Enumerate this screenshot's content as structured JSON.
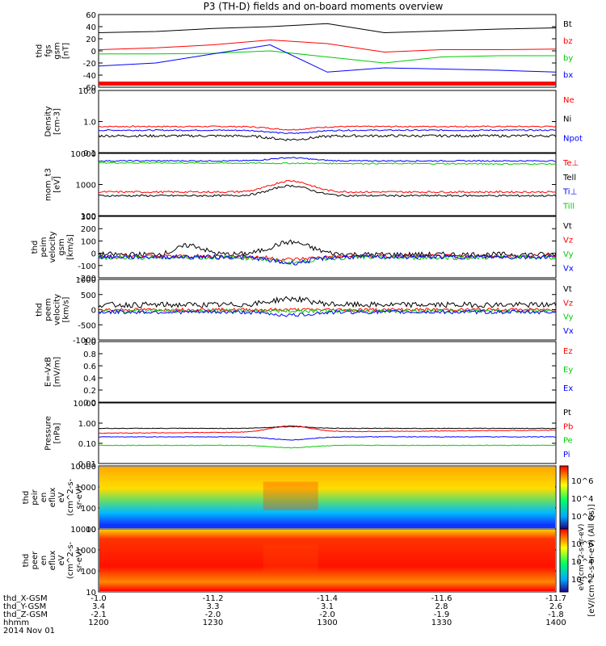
{
  "title": "P3 (TH-D) fields and on-board moments overview",
  "colors": {
    "black": "#000000",
    "red": "#ff0000",
    "green": "#00cc00",
    "blue": "#0000ff"
  },
  "panels": [
    {
      "ylabel": [
        "thd",
        "fgs",
        "gsm",
        "[nT]"
      ],
      "ticks": [
        "60",
        "40",
        "20",
        "0",
        "-20",
        "-40",
        "-60"
      ],
      "legend": [
        {
          "text": "Bt",
          "color": "black"
        },
        {
          "text": "bz",
          "color": "red"
        },
        {
          "text": "by",
          "color": "green"
        },
        {
          "text": "bx",
          "color": "blue"
        }
      ]
    },
    {
      "ylabel": [
        "Density",
        "[cm-3]"
      ],
      "ticks": [
        "10.0",
        "1.0",
        "0.1"
      ],
      "legend": [
        {
          "text": "Ne",
          "color": "red"
        },
        {
          "text": "Ni",
          "color": "black"
        },
        {
          "text": "Npot",
          "color": "blue"
        }
      ]
    },
    {
      "ylabel": [
        "mom_t3",
        "[eV]"
      ],
      "ticks": [
        "10000",
        "1000",
        "100"
      ],
      "legend": [
        {
          "text": "Te⊥",
          "color": "red"
        },
        {
          "text": "Tell",
          "color": "black"
        },
        {
          "text": "Ti⊥",
          "color": "blue"
        },
        {
          "text": "Till",
          "color": "green"
        }
      ]
    },
    {
      "ylabel": [
        "thd",
        "peim",
        "velocity",
        "gsm",
        "[km/s]"
      ],
      "ticks": [
        "300",
        "200",
        "100",
        "0",
        "-100",
        "-200"
      ],
      "legend": [
        {
          "text": "Vt",
          "color": "black"
        },
        {
          "text": "Vz",
          "color": "red"
        },
        {
          "text": "Vy",
          "color": "green"
        },
        {
          "text": "Vx",
          "color": "blue"
        }
      ]
    },
    {
      "ylabel": [
        "thd",
        "peem",
        "velocity",
        "[km/s]"
      ],
      "ticks": [
        "1000",
        "500",
        "0",
        "-500",
        "-1000"
      ],
      "legend": [
        {
          "text": "Vt",
          "color": "black"
        },
        {
          "text": "Vz",
          "color": "red"
        },
        {
          "text": "Vy",
          "color": "green"
        },
        {
          "text": "Vx",
          "color": "blue"
        }
      ]
    },
    {
      "ylabel": [
        "E=-VxB",
        "[mV/m]"
      ],
      "ticks": [
        "1.0",
        "0.8",
        "0.6",
        "0.4",
        "0.2",
        "0.0"
      ],
      "legend": [
        {
          "text": "Ez",
          "color": "red"
        },
        {
          "text": "Ey",
          "color": "green"
        },
        {
          "text": "Ex",
          "color": "blue"
        }
      ]
    },
    {
      "ylabel": [
        "Pressure",
        "[nPa]"
      ],
      "ticks": [
        "10.00",
        "1.00",
        "0.10",
        "0.01"
      ],
      "legend": [
        {
          "text": "Pt",
          "color": "black"
        },
        {
          "text": "Pb",
          "color": "red"
        },
        {
          "text": "Pe",
          "color": "green"
        },
        {
          "text": "Pi",
          "color": "blue"
        }
      ]
    },
    {
      "ylabel": [
        "thd",
        "peir",
        "en",
        "eflux",
        "eV",
        "(cm^2-s-",
        "sr-eV)"
      ],
      "ticks": [
        "10000",
        "1000",
        "100",
        "10"
      ]
    },
    {
      "ylabel": [
        "thd",
        "peer",
        "en",
        "eflux",
        "eV",
        "(cm^2-s-",
        "sr-eV)"
      ],
      "ticks": [
        "10000",
        "1000",
        "100",
        "10"
      ]
    }
  ],
  "colorbar": {
    "ticks1": [
      "10^6",
      "10^4",
      "10^2"
    ],
    "ticks2": [
      "10^6",
      "10^4",
      "10^2"
    ],
    "label": "[eV/(cm^2-s-sr-eV) (All Qs)]",
    "label2": "eV/(cm^2-s-sr-eV)"
  },
  "xaxis": {
    "rows": [
      {
        "label": "thd_X-GSM",
        "values": [
          "-1.0",
          "-11.2",
          "-11.4",
          "-11.6",
          "-11.7"
        ]
      },
      {
        "label": "thd_Y-GSM",
        "values": [
          "3.4",
          "3.3",
          "3.1",
          "2.8",
          "2.6"
        ]
      },
      {
        "label": "thd_Z-GSM",
        "values": [
          "-2.1",
          "-2.0",
          "-2.0",
          "-1.9",
          "-1.8"
        ]
      },
      {
        "label": "hhmm",
        "values": [
          "1200",
          "1230",
          "1300",
          "1330",
          "1400"
        ]
      }
    ],
    "date": "2014 Nov 01"
  },
  "chart_data": {
    "type": "line",
    "title": "P3 (TH-D) fields and on-board moments overview",
    "x": [
      "1200",
      "1215",
      "1230",
      "1245",
      "1300",
      "1315",
      "1330",
      "1345",
      "1400"
    ],
    "series": [
      {
        "name": "Bt",
        "values": [
          30,
          32,
          37,
          40,
          45,
          30,
          33,
          36,
          38
        ]
      },
      {
        "name": "bz",
        "values": [
          2,
          5,
          10,
          18,
          12,
          -2,
          2,
          2,
          3
        ]
      },
      {
        "name": "by",
        "values": [
          -5,
          -5,
          -4,
          0,
          -10,
          -20,
          -10,
          -8,
          -8
        ]
      },
      {
        "name": "bx",
        "values": [
          -25,
          -20,
          -5,
          10,
          -35,
          -28,
          -30,
          -32,
          -35
        ]
      }
    ],
    "ylim": [
      -60,
      60
    ]
  }
}
